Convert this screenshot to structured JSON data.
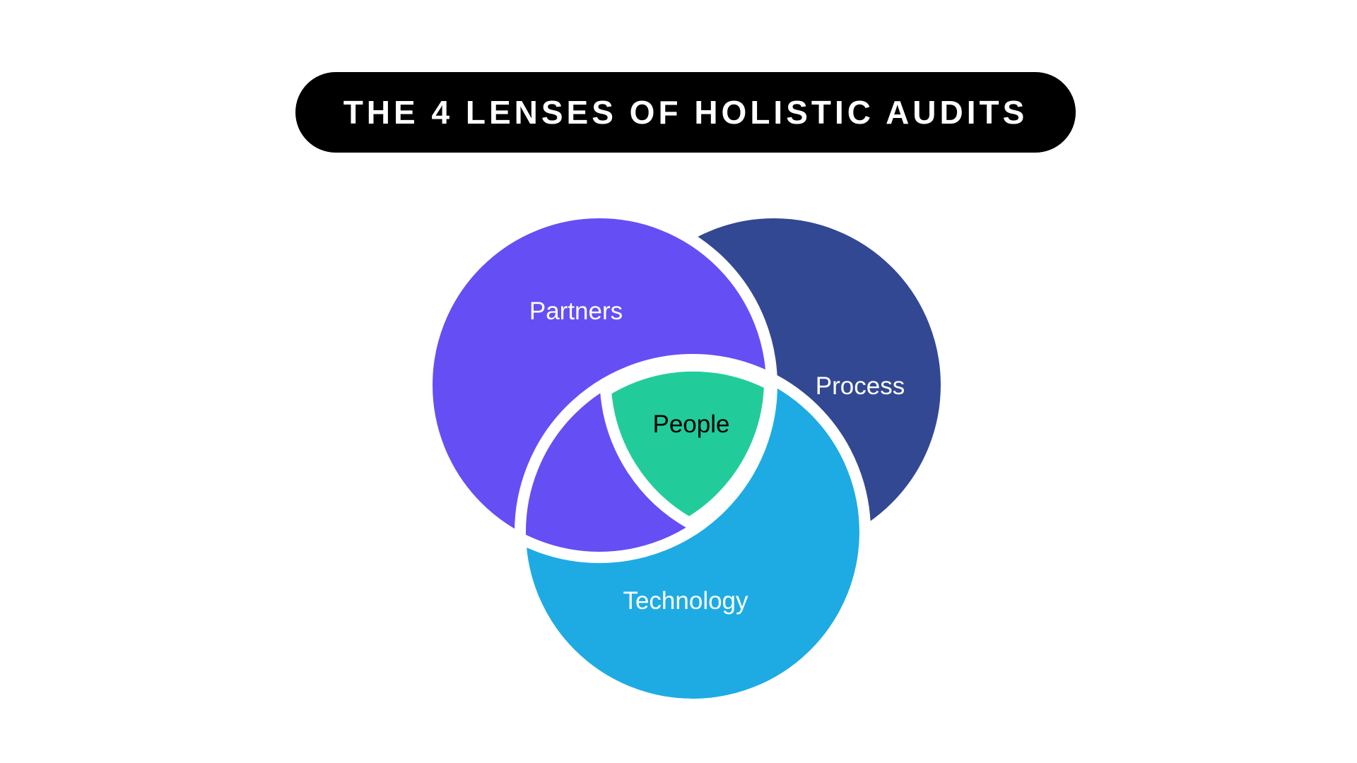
{
  "title": "THE 4 LENSES OF HOLISTIC AUDITS",
  "lenses": {
    "partners": {
      "label": "Partners",
      "color": "#654ef4"
    },
    "process": {
      "label": "Process",
      "color": "#324893"
    },
    "technology": {
      "label": "Technology",
      "color": "#1eabe3"
    },
    "people": {
      "label": "People",
      "color": "#22cc9a"
    }
  },
  "colors": {
    "title_background": "#000000",
    "title_text": "#ffffff",
    "separator": "#ffffff",
    "label_light": "#ffffff",
    "label_dark": "#000000"
  }
}
